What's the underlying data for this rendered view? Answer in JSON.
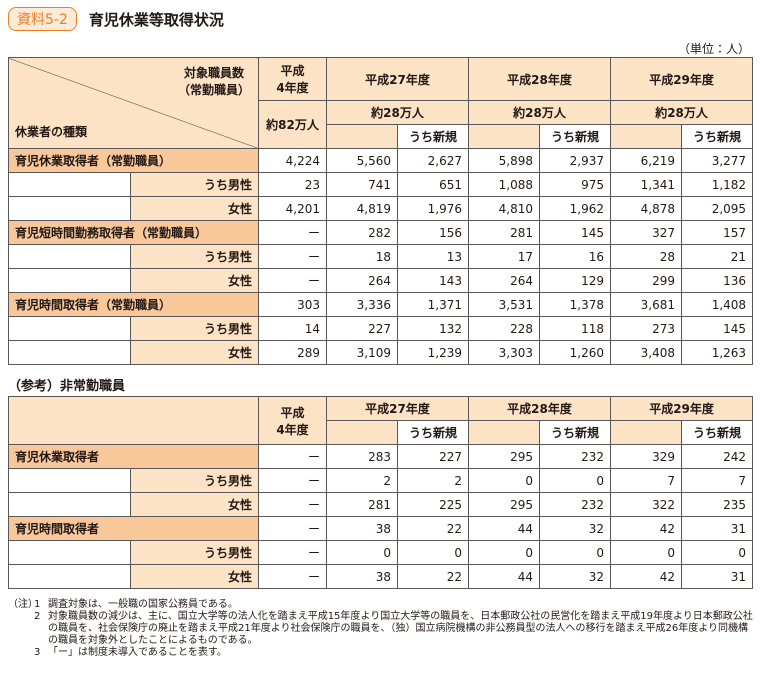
{
  "header": {
    "badge": "資料5-2",
    "title": "育児休業等取得状況",
    "unit": "（単位：人）"
  },
  "table1": {
    "corner_top": [
      "対象職員数",
      "（常勤職員）"
    ],
    "corner_bottom": "休業者の種類",
    "base_year": [
      "平成",
      "4年度"
    ],
    "base_staff": "約82万人",
    "years": [
      "平成27年度",
      "平成28年度",
      "平成29年度"
    ],
    "staff": [
      "約28万人",
      "約28万人",
      "約28万人"
    ],
    "new_label": [
      "うち新規",
      "うち新規",
      "うち新規"
    ],
    "groups": [
      {
        "label": "育児休業取得者（常勤職員）",
        "values": [
          "4,224",
          "5,560",
          "2,627",
          "5,898",
          "2,937",
          "6,219",
          "3,277"
        ],
        "sub": [
          {
            "label": "うち男性",
            "values": [
              "23",
              "741",
              "651",
              "1,088",
              "975",
              "1,341",
              "1,182"
            ]
          },
          {
            "label": "女性",
            "values": [
              "4,201",
              "4,819",
              "1,976",
              "4,810",
              "1,962",
              "4,878",
              "2,095"
            ]
          }
        ]
      },
      {
        "label": "育児短時間勤務取得者（常勤職員）",
        "values": [
          "ー",
          "282",
          "156",
          "281",
          "145",
          "327",
          "157"
        ],
        "sub": [
          {
            "label": "うち男性",
            "values": [
              "ー",
              "18",
              "13",
              "17",
              "16",
              "28",
              "21"
            ]
          },
          {
            "label": "女性",
            "values": [
              "ー",
              "264",
              "143",
              "264",
              "129",
              "299",
              "136"
            ]
          }
        ]
      },
      {
        "label": "育児時間取得者（常勤職員）",
        "values": [
          "303",
          "3,336",
          "1,371",
          "3,531",
          "1,378",
          "3,681",
          "1,408"
        ],
        "sub": [
          {
            "label": "うち男性",
            "values": [
              "14",
              "227",
              "132",
              "228",
              "118",
              "273",
              "145"
            ]
          },
          {
            "label": "女性",
            "values": [
              "289",
              "3,109",
              "1,239",
              "3,303",
              "1,260",
              "3,408",
              "1,263"
            ]
          }
        ]
      }
    ]
  },
  "table2": {
    "title": "（参考）非常勤職員",
    "base_year": [
      "平成",
      "4年度"
    ],
    "years": [
      "平成27年度",
      "平成28年度",
      "平成29年度"
    ],
    "new_label": [
      "うち新規",
      "うち新規",
      "うち新規"
    ],
    "groups": [
      {
        "label": "育児休業取得者",
        "values": [
          "ー",
          "283",
          "227",
          "295",
          "232",
          "329",
          "242"
        ],
        "sub": [
          {
            "label": "うち男性",
            "values": [
              "ー",
              "2",
              "2",
              "0",
              "0",
              "7",
              "7"
            ]
          },
          {
            "label": "女性",
            "values": [
              "ー",
              "281",
              "225",
              "295",
              "232",
              "322",
              "235"
            ]
          }
        ]
      },
      {
        "label": "育児時間取得者",
        "values": [
          "ー",
          "38",
          "22",
          "44",
          "32",
          "42",
          "31"
        ],
        "sub": [
          {
            "label": "うち男性",
            "values": [
              "ー",
              "0",
              "0",
              "0",
              "0",
              "0",
              "0"
            ]
          },
          {
            "label": "女性",
            "values": [
              "ー",
              "38",
              "22",
              "44",
              "32",
              "42",
              "31"
            ]
          }
        ]
      }
    ]
  },
  "notes": {
    "prefix": "（注）",
    "items": [
      {
        "num": "1",
        "text": "調査対象は、一般職の国家公務員である。"
      },
      {
        "num": "2",
        "text": "対象職員数の減少は、主に、国立大学等の法人化を踏まえ平成15年度より国立大学等の職員を、日本郵政公社の民営化を踏まえ平成19年度より日本郵政公社の職員を、社会保険庁の廃止を踏まえ平成21年度より社会保険庁の職員を、（独）国立病院機構の非公務員型の法人への移行を踏まえ平成26年度より同機構の職員を対象外としたことによるものである。"
      },
      {
        "num": "3",
        "text": "「ー」は制度未導入であることを表す。"
      }
    ]
  }
}
